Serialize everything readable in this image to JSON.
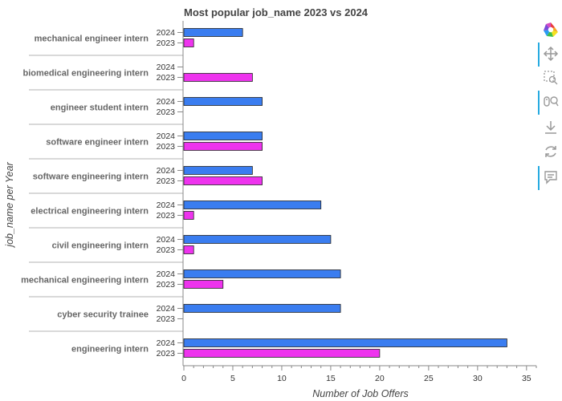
{
  "chart_data": {
    "type": "bar",
    "orientation": "horizontal",
    "title": "Most popular job_name 2023 vs 2024",
    "xlabel": "Number of Job Offers",
    "ylabel": "job_name per Year",
    "xlim": [
      0,
      36
    ],
    "xticks": [
      "0",
      "5",
      "10",
      "15",
      "20",
      "25",
      "30",
      "35"
    ],
    "categories": [
      "mechanical engineer intern",
      "biomedical engineering intern",
      "engineer student intern",
      "software engineer intern",
      "software engineering intern",
      "electrical engineering intern",
      "civil engineering intern",
      "mechanical engineering intern",
      "cyber security trainee",
      "engineering intern"
    ],
    "series": [
      {
        "name": "2024",
        "color": "#3a7df0",
        "values": [
          6,
          0,
          8,
          8,
          7,
          14,
          15,
          16,
          16,
          33
        ]
      },
      {
        "name": "2023",
        "color": "#ee33ee",
        "values": [
          1,
          7,
          0,
          8,
          8,
          1,
          1,
          4,
          0,
          20
        ]
      }
    ],
    "grid": false
  },
  "toolbar": {
    "tools": [
      {
        "name": "bokeh-logo-icon",
        "active": false
      },
      {
        "name": "pan-icon",
        "active": true
      },
      {
        "name": "box-zoom-icon",
        "active": false
      },
      {
        "name": "wheel-zoom-icon",
        "active": true
      },
      {
        "name": "save-icon",
        "active": false
      },
      {
        "name": "reset-icon",
        "active": false
      },
      {
        "name": "hover-icon",
        "active": true
      }
    ]
  }
}
